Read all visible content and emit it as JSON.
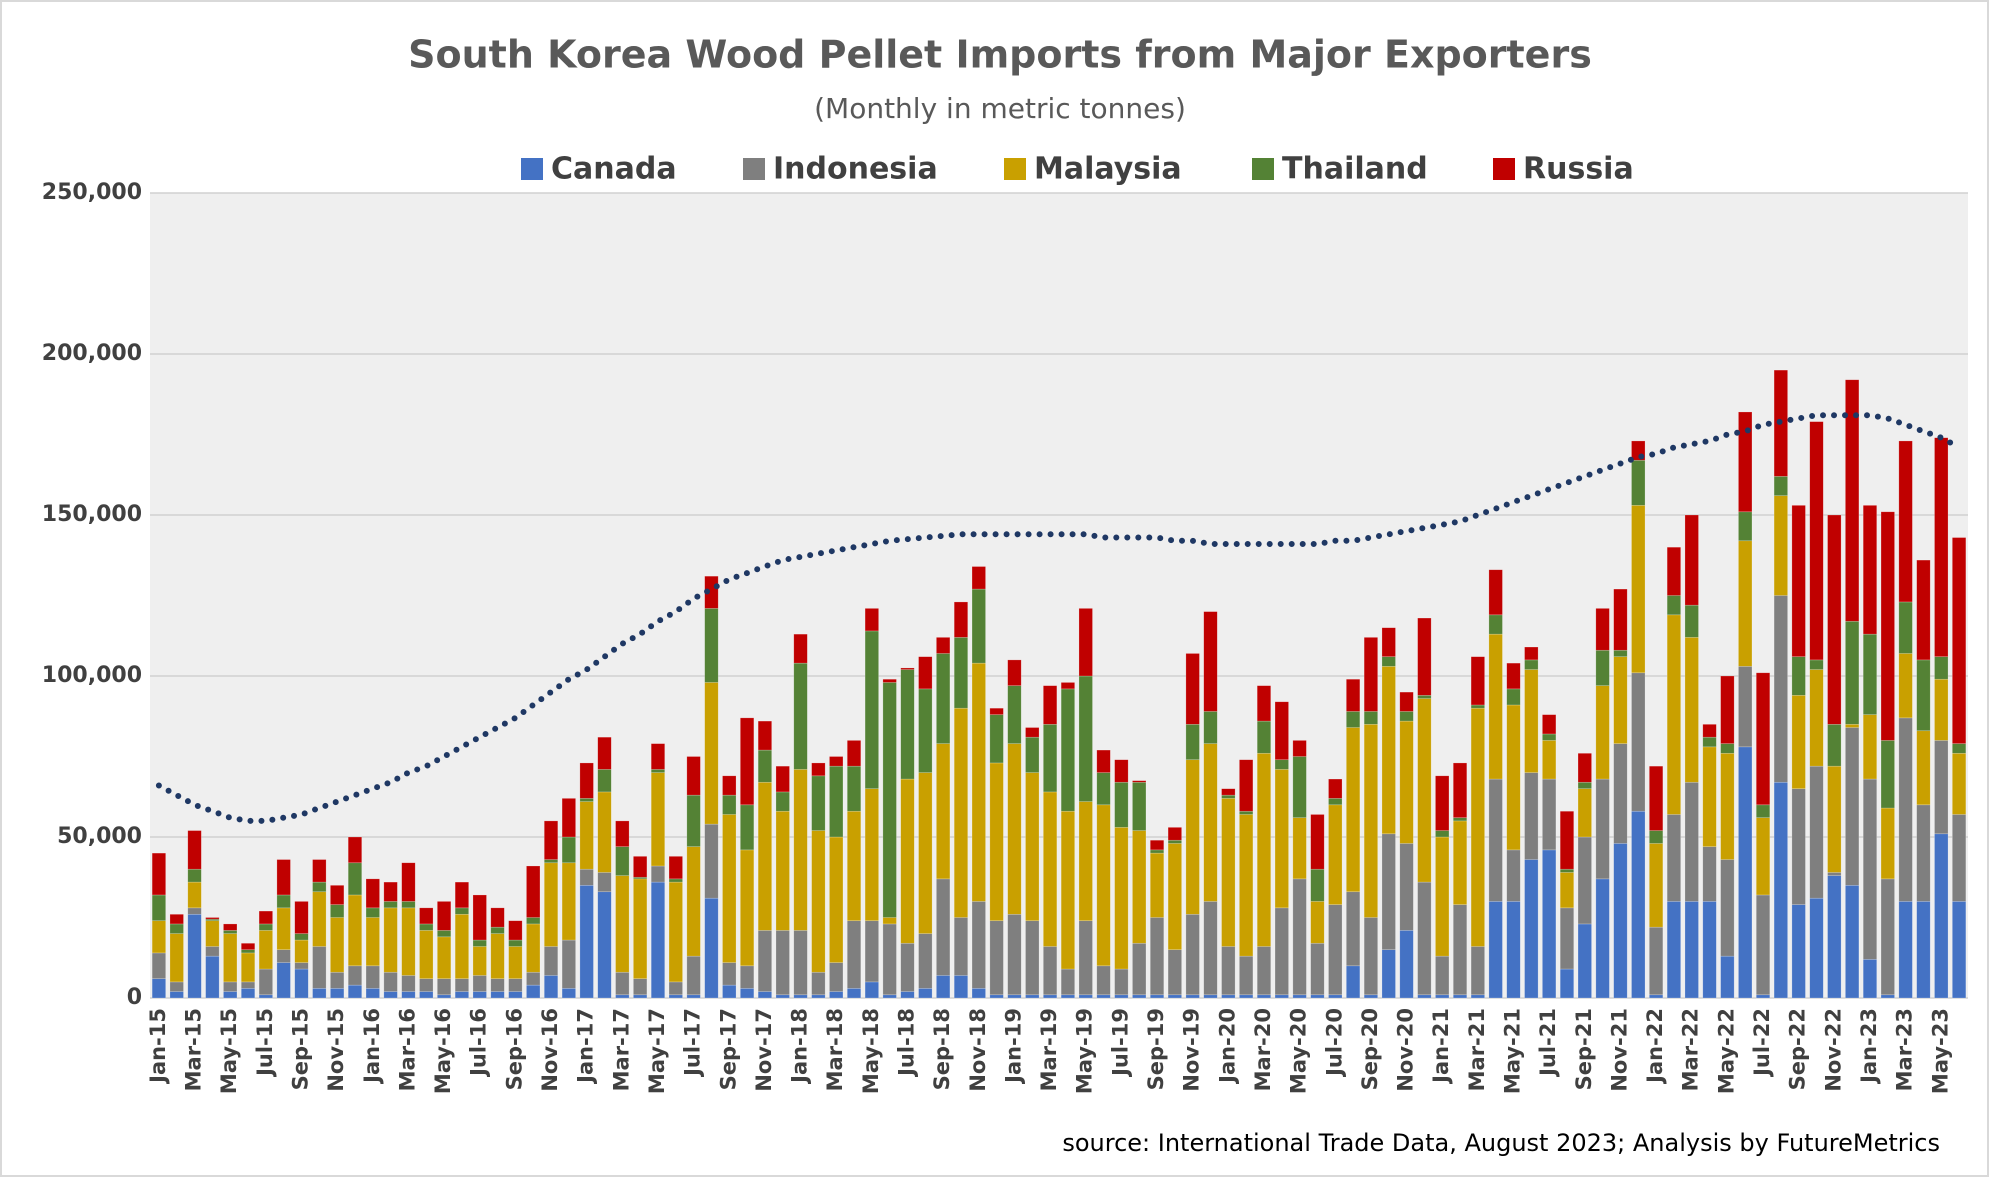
{
  "chart_data": {
    "type": "bar",
    "stacked": true,
    "title": "South Korea Wood Pellet Imports from Major Exporters",
    "subtitle": "(Monthly in metric tonnes)",
    "source": "source: International Trade Data, August 2023; Analysis by FutureMetrics",
    "categories": [
      "Jan-15",
      null,
      "Mar-15",
      null,
      "May-15",
      null,
      "Jul-15",
      null,
      "Sep-15",
      null,
      "Nov-15",
      null,
      "Jan-16",
      null,
      "Mar-16",
      null,
      "May-16",
      null,
      "Jul-16",
      null,
      "Sep-16",
      null,
      "Nov-16",
      null,
      "Jan-17",
      null,
      "Mar-17",
      null,
      "May-17",
      null,
      "Jul-17",
      null,
      "Sep-17",
      null,
      "Nov-17",
      null,
      "Jan-18",
      null,
      "Mar-18",
      null,
      "May-18",
      null,
      "Jul-18",
      null,
      "Sep-18",
      null,
      "Nov-18",
      null,
      "Jan-19",
      null,
      "Mar-19",
      null,
      "May-19",
      null,
      "Jul-19",
      null,
      "Sep-19",
      null,
      "Nov-19",
      null,
      "Jan-20",
      null,
      "Mar-20",
      null,
      "May-20",
      null,
      "Jul-20",
      null,
      "Sep-20",
      null,
      "Nov-20",
      null,
      "Jan-21",
      null,
      "Mar-21",
      null,
      "May-21",
      null,
      "Jul-21",
      null,
      "Sep-21",
      null,
      "Nov-21",
      null,
      "Jan-22",
      null,
      "Mar-22",
      null,
      "May-22",
      null,
      "Jul-22",
      null,
      "Sep-22",
      null,
      "Nov-22",
      null,
      "Jan-23",
      null,
      "Mar-23",
      null,
      "May-23",
      null
    ],
    "series": [
      {
        "name": "Canada",
        "color": "#4472c4",
        "values": [
          6000,
          2000,
          26000,
          13000,
          2000,
          3000,
          1000,
          11000,
          9000,
          3000,
          3000,
          4000,
          3000,
          2000,
          2000,
          2000,
          1000,
          2000,
          2000,
          2000,
          2000,
          4000,
          7000,
          3000,
          35000,
          33000,
          1000,
          1000,
          36000,
          1000,
          1000,
          31000,
          4000,
          3000,
          2000,
          1000,
          1000,
          1000,
          2000,
          3000,
          5000,
          1000,
          2000,
          3000,
          7000,
          7000,
          3000,
          1000,
          1000,
          1000,
          1000,
          1000,
          1000,
          1000,
          1000,
          1000,
          1000,
          1000,
          1000,
          1000,
          1000,
          1000,
          1000,
          1000,
          1000,
          1000,
          1000,
          10000,
          1000,
          15000,
          21000,
          1000,
          1000,
          1000,
          1000,
          30000,
          30000,
          43000,
          46000,
          9000,
          23000,
          37000,
          48000,
          58000,
          1000,
          30000,
          30000,
          30000,
          13000,
          78000,
          1000,
          67000,
          29000,
          31000,
          38000,
          35000,
          12000,
          1000,
          30000,
          30000,
          51000,
          30000
        ]
      },
      {
        "name": "Indonesia",
        "color": "#7f7f7f",
        "values": [
          8000,
          3000,
          2000,
          3000,
          3000,
          2000,
          8000,
          4000,
          2000,
          13000,
          5000,
          6000,
          7000,
          6000,
          5000,
          4000,
          5000,
          4000,
          5000,
          4000,
          4000,
          4000,
          9000,
          15000,
          5000,
          6000,
          7000,
          5000,
          5000,
          4000,
          12000,
          23000,
          7000,
          7000,
          19000,
          20000,
          20000,
          7000,
          9000,
          21000,
          19000,
          22000,
          15000,
          17000,
          30000,
          18000,
          27000,
          23000,
          25000,
          23000,
          15000,
          8000,
          23000,
          9000,
          8000,
          16000,
          24000,
          14000,
          25000,
          29000,
          15000,
          12000,
          15000,
          27000,
          36000,
          16000,
          28000,
          23000,
          24000,
          36000,
          27000,
          35000,
          12000,
          28000,
          15000,
          38000,
          16000,
          27000,
          22000,
          19000,
          27000,
          31000,
          31000,
          43000,
          21000,
          27000,
          37000,
          17000,
          30000,
          25000,
          31000,
          58000,
          36000,
          41000,
          1000,
          49000,
          56000,
          36000,
          57000,
          30000,
          29000,
          27000
        ]
      },
      {
        "name": "Malaysia",
        "color": "#c9a000",
        "values": [
          10000,
          15000,
          8000,
          8000,
          15000,
          9000,
          12000,
          13000,
          7000,
          17000,
          17000,
          22000,
          15000,
          20000,
          21000,
          15000,
          13000,
          20000,
          9000,
          14000,
          10000,
          15000,
          26000,
          24000,
          21000,
          25000,
          30000,
          31000,
          29000,
          31000,
          34000,
          44000,
          46000,
          36000,
          46000,
          37000,
          50000,
          44000,
          39000,
          34000,
          41000,
          2000,
          51000,
          50000,
          42000,
          65000,
          74000,
          49000,
          53000,
          46000,
          48000,
          49000,
          37000,
          50000,
          44000,
          35000,
          20000,
          33000,
          48000,
          49000,
          46000,
          44000,
          60000,
          43000,
          19000,
          13000,
          31000,
          51000,
          60000,
          52000,
          38000,
          57000,
          37000,
          26000,
          74000,
          45000,
          45000,
          32000,
          12000,
          11000,
          15000,
          29000,
          27000,
          52000,
          26000,
          62000,
          45000,
          31000,
          33000,
          39000,
          24000,
          31000,
          29000,
          30000,
          33000,
          1000,
          20000,
          22000,
          20000,
          23000,
          19000,
          19000
        ]
      },
      {
        "name": "Thailand",
        "color": "#548235",
        "values": [
          8000,
          3000,
          4000,
          500,
          1000,
          1000,
          2000,
          4000,
          2000,
          3000,
          4000,
          10000,
          3000,
          2000,
          2000,
          2000,
          2000,
          2000,
          2000,
          2000,
          2000,
          2000,
          1000,
          8000,
          1000,
          7000,
          9000,
          500,
          1000,
          1000,
          16000,
          23000,
          6000,
          14000,
          10000,
          6000,
          33000,
          17000,
          22000,
          14000,
          49000,
          73000,
          34000,
          26000,
          28000,
          22000,
          23000,
          15000,
          18000,
          11000,
          21000,
          38000,
          39000,
          10000,
          14000,
          15000,
          1000,
          1000,
          11000,
          10000,
          1000,
          1000,
          10000,
          3000,
          19000,
          10000,
          2000,
          5000,
          4000,
          3000,
          3000,
          1000,
          2000,
          1000,
          1000,
          6000,
          5000,
          3000,
          2000,
          1000,
          2000,
          11000,
          2000,
          14000,
          4000,
          6000,
          10000,
          3000,
          3000,
          9000,
          4000,
          6000,
          12000,
          3000,
          13000,
          32000,
          25000,
          21000,
          16000,
          22000,
          7000,
          3000
        ]
      },
      {
        "name": "Russia",
        "color": "#c00000",
        "values": [
          13000,
          3000,
          12000,
          500,
          2000,
          2000,
          4000,
          11000,
          10000,
          7000,
          6000,
          8000,
          9000,
          6000,
          12000,
          5000,
          9000,
          8000,
          14000,
          6000,
          6000,
          16000,
          12000,
          12000,
          11000,
          10000,
          8000,
          6500,
          8000,
          7000,
          12000,
          10000,
          6000,
          27000,
          9000,
          8000,
          9000,
          4000,
          3000,
          8000,
          7000,
          1000,
          500,
          10000,
          5000,
          11000,
          7000,
          2000,
          8000,
          3000,
          12000,
          2000,
          21000,
          7000,
          7000,
          500,
          3000,
          4000,
          22000,
          31000,
          2000,
          16000,
          11000,
          18000,
          5000,
          17000,
          6000,
          10000,
          23000,
          9000,
          6000,
          24000,
          17000,
          17000,
          15000,
          14000,
          8000,
          4000,
          6000,
          18000,
          9000,
          13000,
          19000,
          6000,
          20000,
          15000,
          28000,
          4000,
          21000,
          31000,
          41000,
          33000,
          47000,
          74000,
          65000,
          75000,
          40000,
          71000,
          50000,
          31000,
          68000,
          64000
        ]
      }
    ],
    "trendline": {
      "color": "#1f3864",
      "values": [
        66000,
        63000,
        60000,
        58000,
        56000,
        55000,
        55000,
        56000,
        57000,
        59000,
        61000,
        63000,
        65000,
        67000,
        70000,
        72000,
        75000,
        78000,
        81000,
        84000,
        87000,
        91000,
        95000,
        99000,
        102000,
        106000,
        110000,
        113000,
        117000,
        120000,
        124000,
        127000,
        130000,
        132000,
        134000,
        136000,
        137000,
        138000,
        139000,
        140000,
        141000,
        142000,
        142500,
        143000,
        143500,
        144000,
        144000,
        144000,
        144000,
        144000,
        144000,
        144000,
        144000,
        143000,
        143000,
        143000,
        143000,
        142000,
        142000,
        141000,
        141000,
        141000,
        141000,
        141000,
        141000,
        141000,
        142000,
        142000,
        143000,
        144000,
        145000,
        146000,
        147000,
        148000,
        150000,
        152000,
        154000,
        156000,
        158000,
        160000,
        162000,
        164000,
        166000,
        168000,
        169000,
        171000,
        172000,
        173000,
        175000,
        176000,
        178000,
        179000,
        180000,
        181000,
        181000,
        181000,
        181000,
        180000,
        178000,
        176000,
        174000,
        171000
      ]
    },
    "ylim": [
      0,
      250000
    ],
    "yticks": [
      0,
      {
        "value": 50000,
        "label": "50,000"
      },
      {
        "value": 100000,
        "label": "100,000"
      },
      {
        "value": 150000,
        "label": "150,000"
      },
      {
        "value": 200000,
        "label": "200,000"
      },
      {
        "value": 250000,
        "label": "250,000"
      }
    ],
    "grid": true,
    "legend": "top"
  }
}
